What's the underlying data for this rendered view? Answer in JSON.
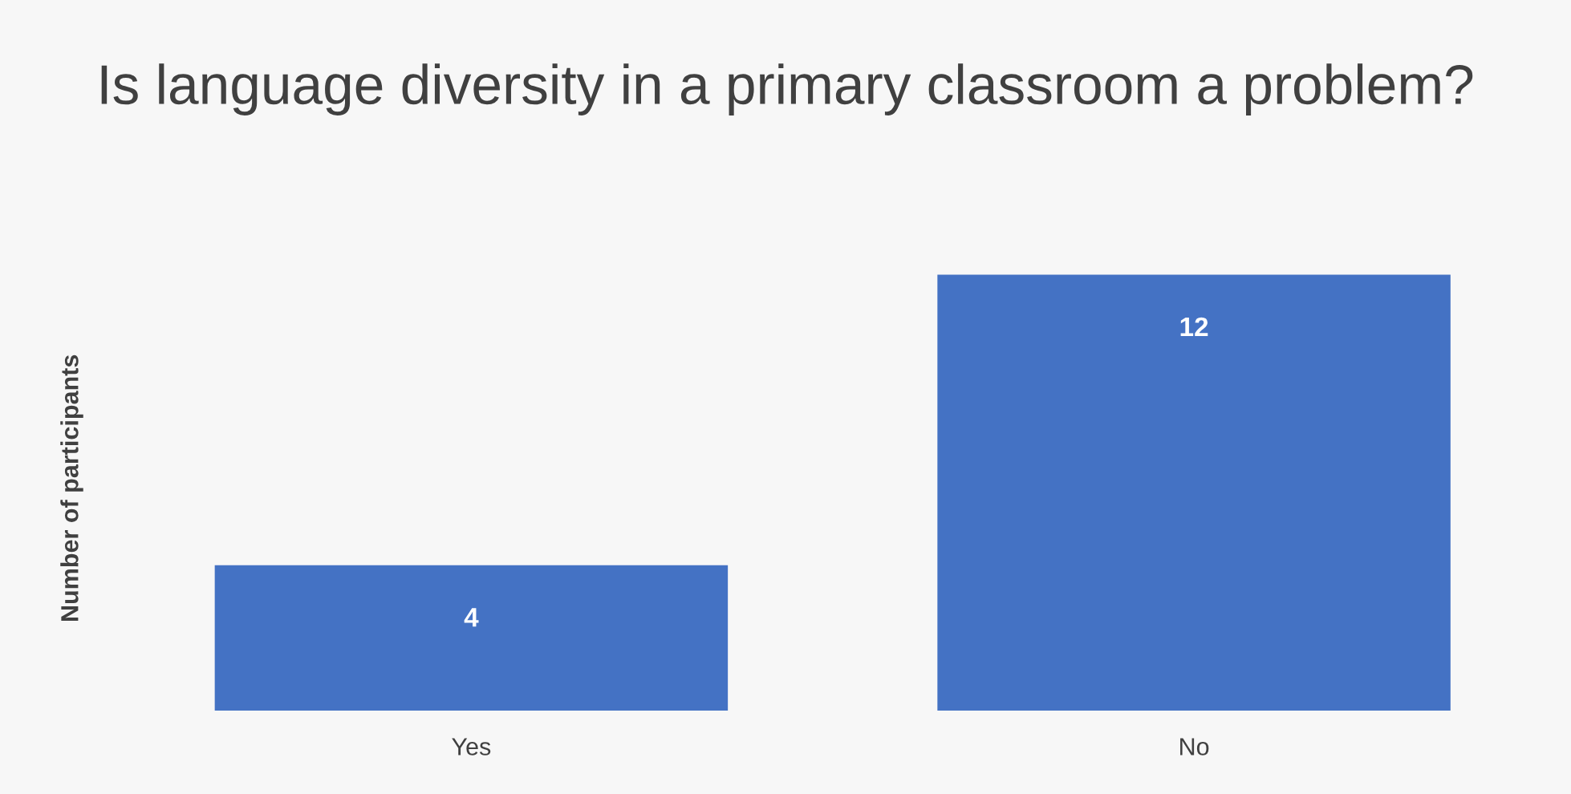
{
  "chart_data": {
    "type": "bar",
    "title": "Is language diversity in a primary classroom a problem?",
    "ylabel": "Number of participants",
    "categories": [
      "Yes",
      "No"
    ],
    "values": [
      4,
      12
    ],
    "color": "#4472c4",
    "data_labels": true,
    "grid": false,
    "legend": false
  }
}
